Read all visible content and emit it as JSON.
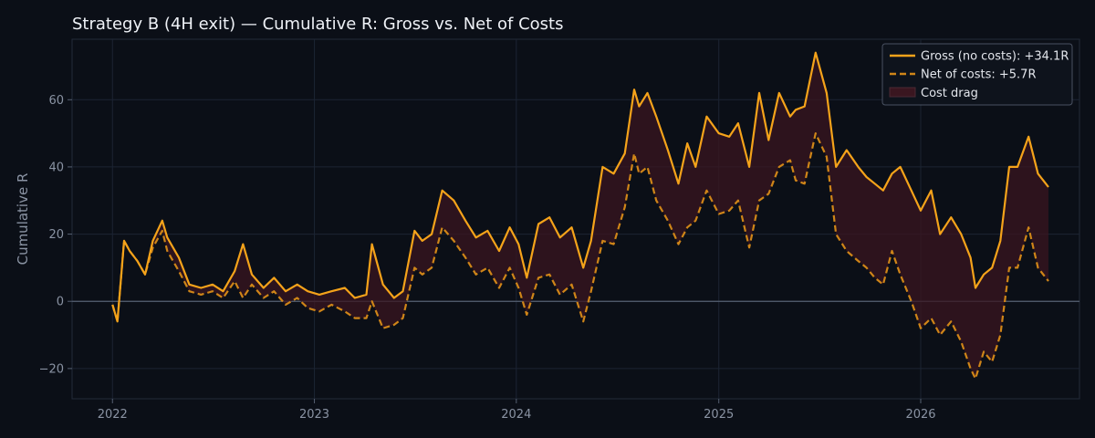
{
  "chart_data": {
    "type": "line",
    "title": "Strategy B (4H exit) — Cumulative R: Gross vs. Net of Costs",
    "xlabel": "",
    "ylabel": "Cumulative R",
    "xlim": [
      "2021-10-20",
      "2026-10-15"
    ],
    "ylim": [
      -29,
      78
    ],
    "x_ticks": [
      "2022",
      "2023",
      "2024",
      "2025",
      "2026"
    ],
    "y_ticks": [
      -20,
      0,
      20,
      40,
      60
    ],
    "grid": true,
    "legend_position": "top-right",
    "colors": {
      "background": "#0b0f17",
      "gross": "#f5a31a",
      "net": "#cf8518",
      "cost_drag": "#3a1620",
      "grid": "#1c2433",
      "zero_line": "#566072"
    },
    "series": [
      {
        "name": "Gross (no costs): +34.1R",
        "style": "solid",
        "x": [
          "2022-01-01",
          "2022-01-10",
          "2022-01-22",
          "2022-02-01",
          "2022-02-15",
          "2022-03-01",
          "2022-03-15",
          "2022-04-01",
          "2022-04-10",
          "2022-05-01",
          "2022-05-20",
          "2022-06-10",
          "2022-07-01",
          "2022-07-20",
          "2022-08-10",
          "2022-08-25",
          "2022-09-10",
          "2022-10-01",
          "2022-10-20",
          "2022-11-10",
          "2022-12-01",
          "2022-12-20",
          "2023-01-10",
          "2023-02-01",
          "2023-02-25",
          "2023-03-15",
          "2023-04-05",
          "2023-04-15",
          "2023-05-05",
          "2023-05-25",
          "2023-06-10",
          "2023-07-01",
          "2023-07-15",
          "2023-08-01",
          "2023-08-20",
          "2023-09-10",
          "2023-10-01",
          "2023-10-20",
          "2023-11-10",
          "2023-12-01",
          "2023-12-20",
          "2024-01-05",
          "2024-01-20",
          "2024-02-10",
          "2024-03-01",
          "2024-03-20",
          "2024-04-10",
          "2024-05-01",
          "2024-05-15",
          "2024-06-05",
          "2024-06-25",
          "2024-07-15",
          "2024-08-01",
          "2024-08-10",
          "2024-08-25",
          "2024-09-10",
          "2024-10-01",
          "2024-10-20",
          "2024-11-05",
          "2024-11-20",
          "2024-12-10",
          "2025-01-01",
          "2025-01-20",
          "2025-02-05",
          "2025-02-25",
          "2025-03-15",
          "2025-04-01",
          "2025-04-20",
          "2025-05-10",
          "2025-05-20",
          "2025-06-05",
          "2025-06-25",
          "2025-07-15",
          "2025-08-01",
          "2025-08-20",
          "2025-09-10",
          "2025-09-25",
          "2025-10-10",
          "2025-10-25",
          "2025-11-10",
          "2025-11-25",
          "2025-12-15",
          "2026-01-01",
          "2026-01-20",
          "2026-02-05",
          "2026-02-25",
          "2026-03-15",
          "2026-04-01",
          "2026-04-10",
          "2026-04-25",
          "2026-05-10",
          "2026-05-25",
          "2026-06-10",
          "2026-06-25",
          "2026-07-15",
          "2026-08-01",
          "2026-08-20"
        ],
        "y": [
          -1,
          -6,
          18,
          15,
          12,
          8,
          18,
          24,
          19,
          13,
          5,
          4,
          5,
          3,
          9,
          17,
          8,
          4,
          7,
          3,
          5,
          3,
          2,
          3,
          4,
          1,
          2,
          17,
          5,
          1,
          3,
          21,
          18,
          20,
          33,
          30,
          24,
          19,
          21,
          15,
          22,
          17,
          7,
          23,
          25,
          19,
          22,
          10,
          18,
          40,
          38,
          44,
          63,
          58,
          62,
          55,
          45,
          35,
          47,
          40,
          55,
          50,
          49,
          53,
          40,
          62,
          48,
          62,
          55,
          57,
          58,
          74,
          62,
          40,
          45,
          40,
          37,
          35,
          33,
          38,
          40,
          33,
          27,
          33,
          20,
          25,
          20,
          13,
          4,
          8,
          10,
          18,
          40,
          40,
          49,
          38,
          34
        ]
      },
      {
        "name": "Net of costs: +5.7R",
        "style": "dashed",
        "x": [
          "2022-01-01",
          "2022-01-10",
          "2022-01-22",
          "2022-02-01",
          "2022-02-15",
          "2022-03-01",
          "2022-03-15",
          "2022-04-01",
          "2022-04-10",
          "2022-05-01",
          "2022-05-20",
          "2022-06-10",
          "2022-07-01",
          "2022-07-20",
          "2022-08-10",
          "2022-08-25",
          "2022-09-10",
          "2022-10-01",
          "2022-10-20",
          "2022-11-10",
          "2022-12-01",
          "2022-12-20",
          "2023-01-10",
          "2023-02-01",
          "2023-02-25",
          "2023-03-15",
          "2023-04-05",
          "2023-04-15",
          "2023-05-05",
          "2023-05-25",
          "2023-06-10",
          "2023-07-01",
          "2023-07-15",
          "2023-08-01",
          "2023-08-20",
          "2023-09-10",
          "2023-10-01",
          "2023-10-20",
          "2023-11-10",
          "2023-12-01",
          "2023-12-20",
          "2024-01-05",
          "2024-01-20",
          "2024-02-10",
          "2024-03-01",
          "2024-03-20",
          "2024-04-10",
          "2024-05-01",
          "2024-05-15",
          "2024-06-05",
          "2024-06-25",
          "2024-07-15",
          "2024-08-01",
          "2024-08-10",
          "2024-08-25",
          "2024-09-10",
          "2024-10-01",
          "2024-10-20",
          "2024-11-05",
          "2024-11-20",
          "2024-12-10",
          "2025-01-01",
          "2025-01-20",
          "2025-02-05",
          "2025-02-25",
          "2025-03-15",
          "2025-04-01",
          "2025-04-20",
          "2025-05-10",
          "2025-05-20",
          "2025-06-05",
          "2025-06-25",
          "2025-07-15",
          "2025-08-01",
          "2025-08-20",
          "2025-09-10",
          "2025-09-25",
          "2025-10-10",
          "2025-10-25",
          "2025-11-10",
          "2025-11-25",
          "2025-12-15",
          "2026-01-01",
          "2026-01-20",
          "2026-02-05",
          "2026-02-25",
          "2026-03-15",
          "2026-04-01",
          "2026-04-10",
          "2026-04-25",
          "2026-05-10",
          "2026-05-25",
          "2026-06-10",
          "2026-06-25",
          "2026-07-15",
          "2026-08-01",
          "2026-08-20"
        ],
        "y": [
          -1,
          -6,
          18,
          15,
          12,
          8,
          16,
          21,
          15,
          9,
          3,
          2,
          3,
          1,
          6,
          1,
          5,
          1,
          3,
          -1,
          1,
          -2,
          -3,
          -1,
          -3,
          -5,
          -5,
          0,
          -8,
          -7,
          -5,
          10,
          8,
          10,
          22,
          18,
          13,
          8,
          10,
          4,
          10,
          4,
          -4,
          7,
          8,
          2,
          5,
          -6,
          3,
          18,
          17,
          28,
          44,
          38,
          40,
          30,
          24,
          17,
          22,
          24,
          33,
          26,
          27,
          30,
          16,
          30,
          32,
          40,
          42,
          36,
          35,
          50,
          43,
          20,
          15,
          12,
          10,
          7,
          5,
          15,
          8,
          0,
          -8,
          -5,
          -10,
          -6,
          -12,
          -20,
          -23,
          -15,
          -18,
          -10,
          10,
          10,
          22,
          10,
          6
        ]
      }
    ],
    "fill": {
      "name": "Cost drag",
      "between": [
        "Gross (no costs): +34.1R",
        "Net of costs: +5.7R"
      ]
    }
  }
}
